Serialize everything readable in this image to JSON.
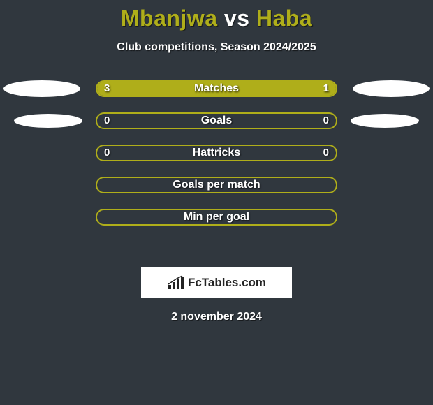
{
  "title": {
    "player1": "Mbanjwa",
    "vs": "vs",
    "player2": "Haba",
    "player1_color": "#afae1a",
    "player2_color": "#afae1a"
  },
  "subtitle": "Club competitions, Season 2024/2025",
  "colors": {
    "background": "#30373e",
    "bar_border": "#afae1a",
    "bar_fill_left": "#afae1a",
    "bar_fill_right": "#afae1a",
    "ellipse_left": "#ffffff",
    "ellipse_right": "#ffffff",
    "text": "#ffffff"
  },
  "rows": [
    {
      "label": "Matches",
      "left_value": "3",
      "right_value": "1",
      "left_pct": 75,
      "right_pct": 25,
      "show_left_ellipse": true,
      "show_right_ellipse": true,
      "ellipse_top_offset": 0
    },
    {
      "label": "Goals",
      "left_value": "0",
      "right_value": "0",
      "left_pct": 0,
      "right_pct": 0,
      "show_left_ellipse": true,
      "show_right_ellipse": true,
      "ellipse_top_offset": 0
    },
    {
      "label": "Hattricks",
      "left_value": "0",
      "right_value": "0",
      "left_pct": 0,
      "right_pct": 0,
      "show_left_ellipse": false,
      "show_right_ellipse": false
    },
    {
      "label": "Goals per match",
      "left_value": "",
      "right_value": "",
      "left_pct": 0,
      "right_pct": 0,
      "show_left_ellipse": false,
      "show_right_ellipse": false
    },
    {
      "label": "Min per goal",
      "left_value": "",
      "right_value": "",
      "left_pct": 0,
      "right_pct": 0,
      "show_left_ellipse": false,
      "show_right_ellipse": false
    }
  ],
  "brand": {
    "text": "FcTables.com",
    "box_bg": "#ffffff",
    "text_color": "#232323",
    "icon_color": "#232323"
  },
  "date": "2 november 2024"
}
